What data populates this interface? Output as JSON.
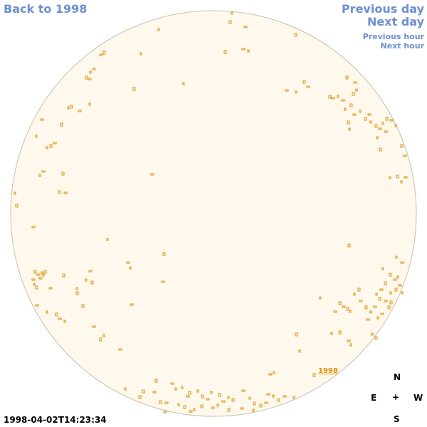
{
  "nav": {
    "back_label": "Back to 1998",
    "prev_day_label": "Previous day",
    "next_day_label": "Next day",
    "prev_hour_label": "Previous hour",
    "next_hour_label": "Next hour"
  },
  "timestamp": "1998-04-02T14:23:34",
  "year_label": "1998",
  "compass": {
    "north": "N",
    "east": "E",
    "center": "+",
    "west": "W",
    "south": "S"
  },
  "colors": {
    "disk_fill": "#fef9ec",
    "disk_edge": "#c8bfae",
    "region": "#e8900c",
    "link": "#6b8fd9"
  }
}
